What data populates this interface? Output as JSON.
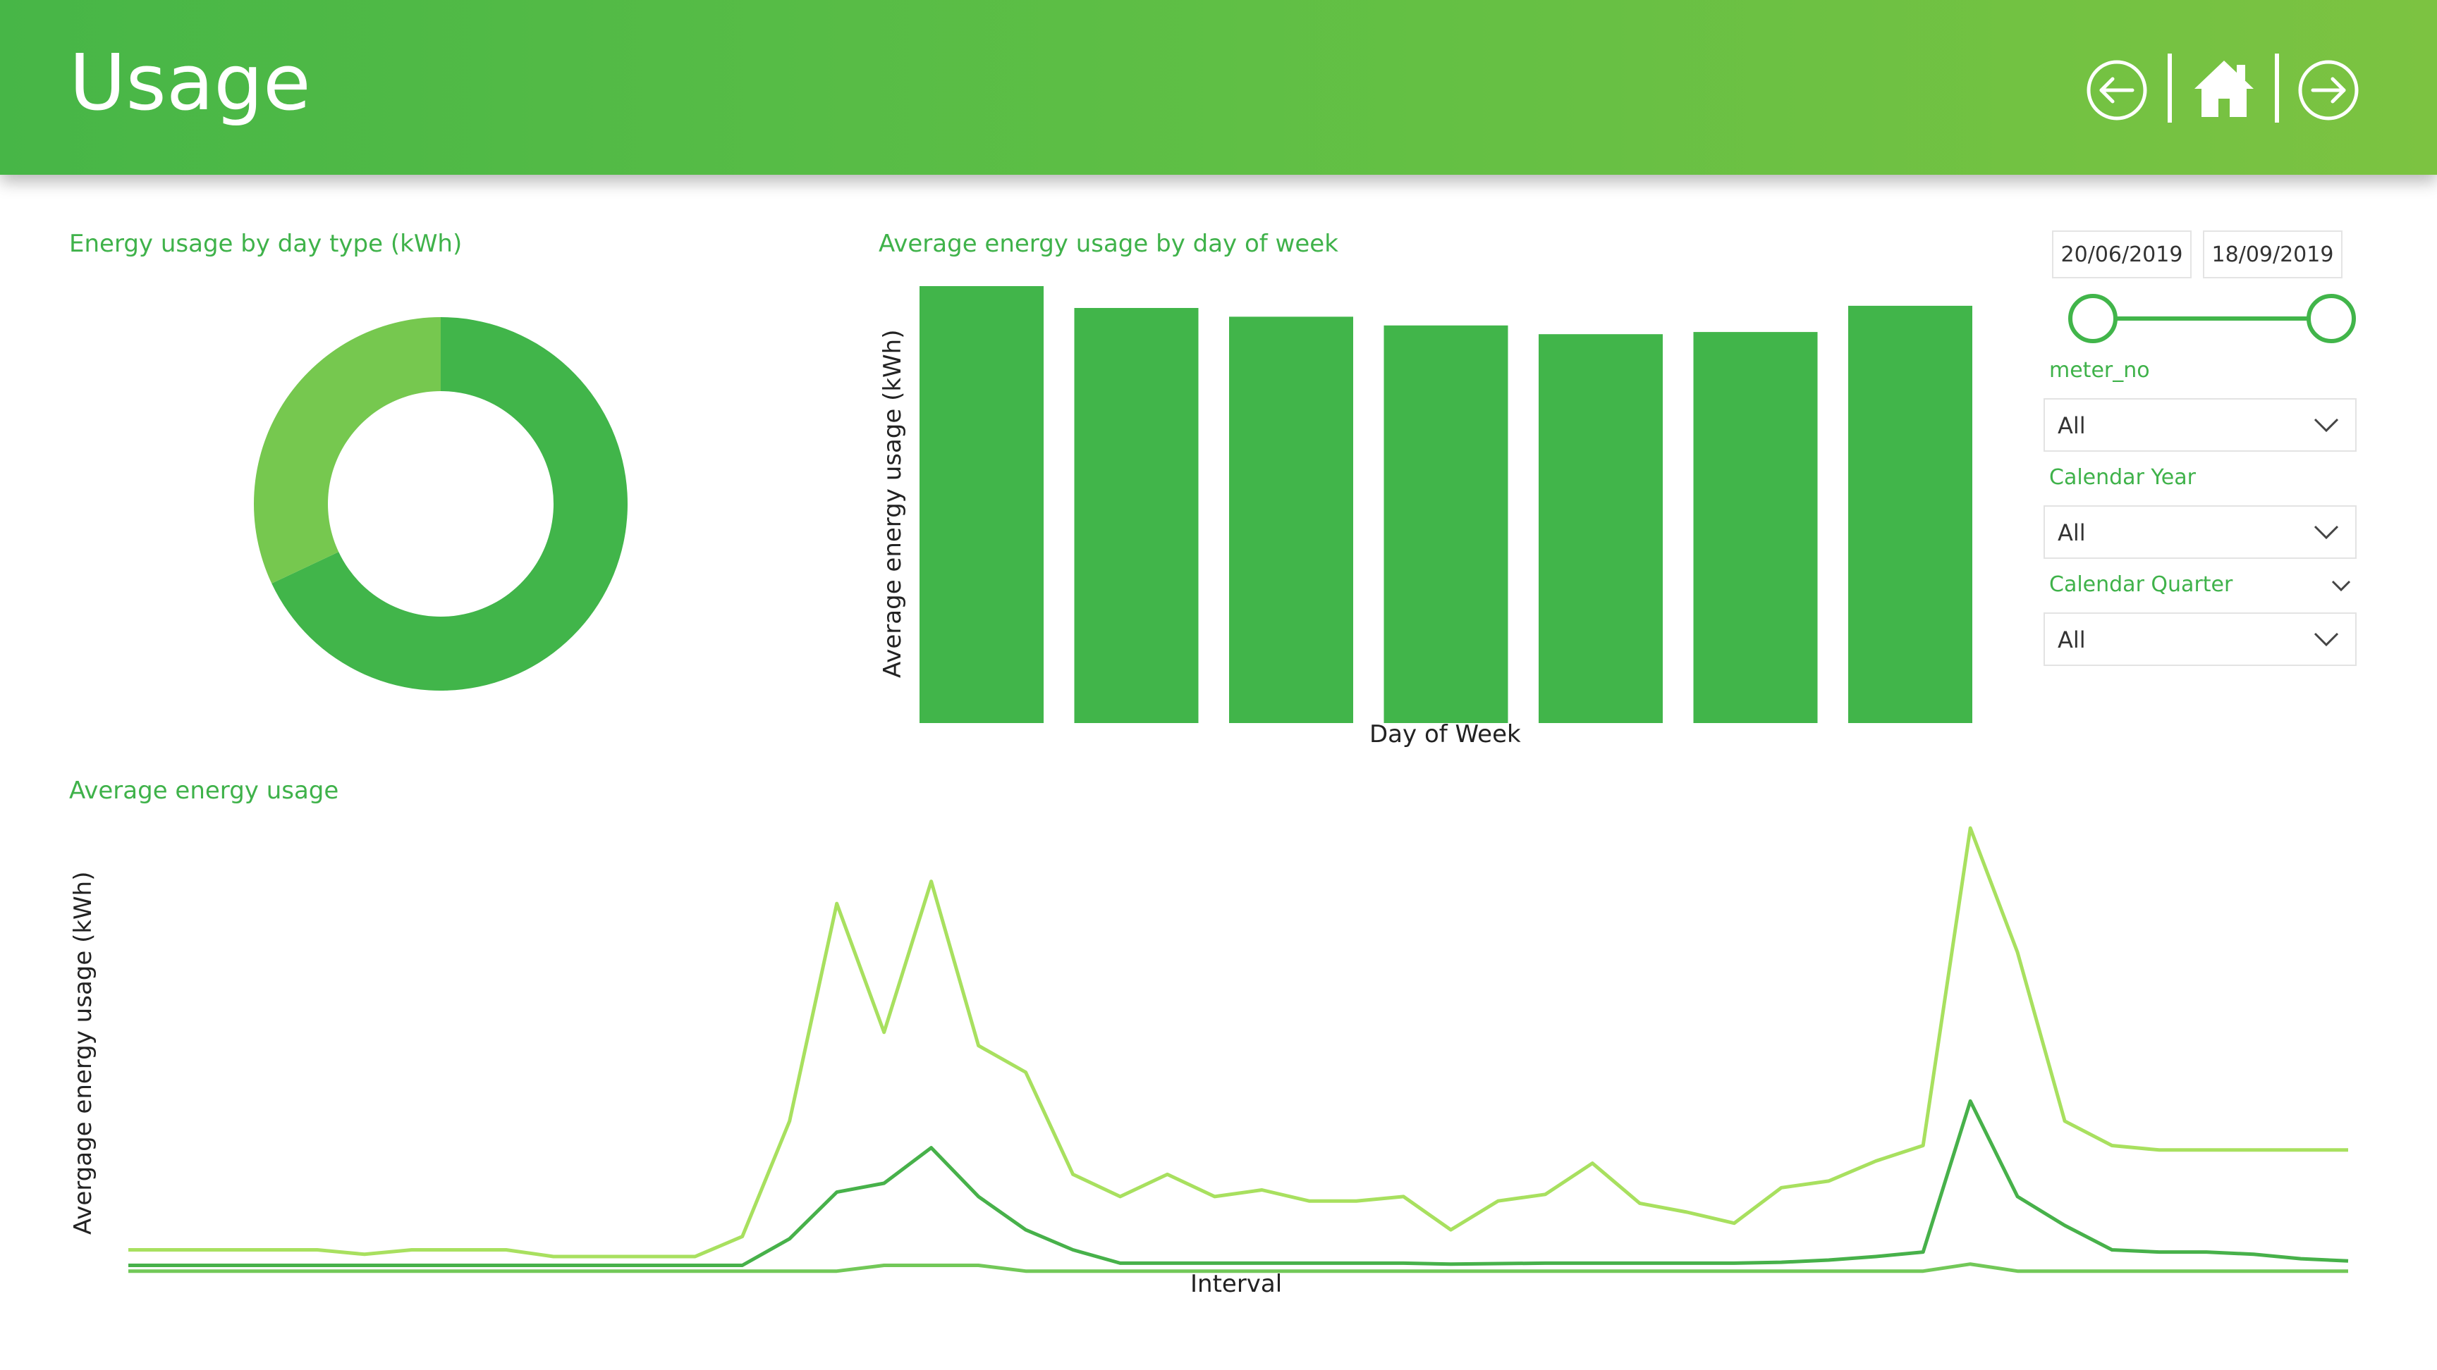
{
  "header": {
    "title": "Usage",
    "nav": [
      {
        "icon": "back-arrow-circle-icon"
      },
      {
        "icon": "home-icon"
      },
      {
        "icon": "forward-arrow-circle-icon"
      }
    ]
  },
  "colors": {
    "header_start": "#47b647",
    "header_end": "#7cc341",
    "accent": "#3fb24a",
    "bar": "#41b54a",
    "line_light": "#a8e05f",
    "line_dark": "#47b14a",
    "line_mid": "#72c858"
  },
  "donut": {
    "title": "Energy usage by day type (kWh)"
  },
  "bars": {
    "title": "Average energy usage by day of week",
    "ylabel": "Average energy usage (kWh)",
    "xlabel": "Day of Week"
  },
  "lines": {
    "title": "Average energy usage",
    "ylabel": "Avergage energy usage (kWh)",
    "xlabel": "Interval"
  },
  "filters": {
    "date_start": "20/06/2019",
    "date_end": "18/09/2019",
    "range_start_fraction": 0,
    "range_end_fraction": 1,
    "meter_label": "meter_no",
    "meter_value": "All",
    "year_label": "Calendar Year",
    "year_value": "All",
    "quarter_label": "Calendar Quarter",
    "quarter_value": "All"
  },
  "chart_data": [
    {
      "type": "pie",
      "title": "Energy usage by day type (kWh)",
      "values": [
        68,
        32
      ],
      "colors": [
        "#41b54a",
        "#76c84f"
      ]
    },
    {
      "type": "bar",
      "title": "Average energy usage by day of week",
      "xlabel": "Day of Week",
      "ylabel": "Average energy usage (kWh)",
      "values": [
        100,
        95,
        93,
        91,
        89,
        89.5,
        95.5
      ],
      "ylim": [
        0,
        100
      ],
      "color": "#41b54a"
    },
    {
      "type": "line",
      "title": "Average energy usage",
      "xlabel": "Interval",
      "ylabel": "Avergage energy usage (kWh)",
      "x": [
        1,
        2,
        3,
        4,
        5,
        6,
        7,
        8,
        9,
        10,
        11,
        12,
        13,
        14,
        15,
        16,
        17,
        18,
        19,
        20,
        21,
        22,
        23,
        24,
        25,
        26,
        27,
        28,
        29,
        30,
        31,
        32,
        33,
        34,
        35,
        36,
        37,
        38,
        39,
        40,
        41,
        42,
        43,
        44,
        45,
        46,
        47,
        48
      ],
      "ylim": [
        0,
        100
      ],
      "series": [
        {
          "color": "#a8e05f",
          "values": [
            5,
            5,
            5,
            5,
            5,
            4,
            5,
            5,
            5,
            3.5,
            3.5,
            3.5,
            3.5,
            8,
            34,
            83,
            54,
            88,
            51,
            45,
            22,
            17,
            22,
            17,
            18.5,
            16,
            16,
            17,
            9.5,
            16,
            17.5,
            24.5,
            15.5,
            13.5,
            11,
            19,
            20.5,
            25,
            28.5,
            100,
            72,
            34,
            28.5,
            27.5,
            27.5,
            27.5,
            27.5,
            27.5
          ]
        },
        {
          "color": "#47b14a",
          "values": [
            1.5,
            1.5,
            1.5,
            1.5,
            1.5,
            1.5,
            1.5,
            1.5,
            1.5,
            1.5,
            1.5,
            1.5,
            1.5,
            1.5,
            7.5,
            18,
            20,
            28,
            17,
            9.5,
            5,
            2,
            2,
            2,
            2,
            2,
            2,
            2,
            1.8,
            1.9,
            2,
            2,
            2,
            2,
            2,
            2.2,
            2.7,
            3.5,
            4.5,
            38.5,
            17,
            10.5,
            5,
            4.5,
            4.5,
            4,
            3,
            2.5
          ]
        },
        {
          "color": "#72c858",
          "values": [
            0.2,
            0.2,
            0.2,
            0.2,
            0.2,
            0.2,
            0.2,
            0.2,
            0.2,
            0.2,
            0.2,
            0.2,
            0.2,
            0.2,
            0.2,
            0.2,
            1.5,
            1.5,
            1.5,
            0.2,
            0.2,
            0.2,
            0.2,
            0.2,
            0.2,
            0.2,
            0.2,
            0.2,
            0.2,
            0.2,
            0.2,
            0.2,
            0.2,
            0.2,
            0.2,
            0.2,
            0.2,
            0.2,
            0.2,
            1.8,
            0.2,
            0.2,
            0.2,
            0.2,
            0.2,
            0.2,
            0.2,
            0.2
          ]
        }
      ]
    }
  ]
}
